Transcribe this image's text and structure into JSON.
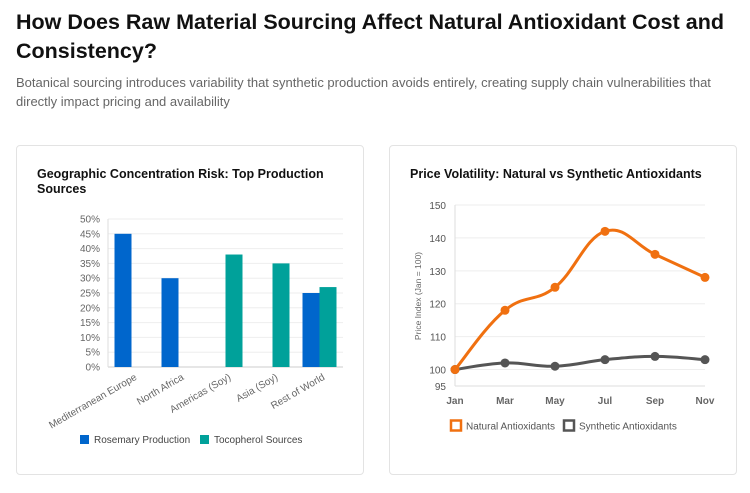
{
  "header": {
    "title": "How Does Raw Material Sourcing Affect Natural Antioxidant Cost and Consistency?",
    "subtitle": "Botanical sourcing introduces variability that synthetic production avoids entirely, creating supply chain vulnerabilities that directly impact pricing and availability"
  },
  "chart_data": [
    {
      "type": "bar",
      "title": "Geographic Concentration Risk: Top Production Sources",
      "categories": [
        "Mediterranean Europe",
        "North Africa",
        "Americas (Soy)",
        "Asia (Soy)",
        "Rest of World"
      ],
      "series": [
        {
          "name": "Rosemary Production",
          "values": [
            45,
            30,
            null,
            null,
            25
          ],
          "color": "#0066cc"
        },
        {
          "name": "Tocopherol Sources",
          "values": [
            null,
            null,
            38,
            35,
            27
          ],
          "color": "#00a19a"
        }
      ],
      "ylim": [
        0,
        50
      ],
      "yticks": [
        "0%",
        "5%",
        "10%",
        "15%",
        "20%",
        "25%",
        "30%",
        "35%",
        "40%",
        "45%",
        "50%"
      ],
      "grid": true,
      "legend": "bottom"
    },
    {
      "type": "line",
      "title": "Price Volatility: Natural vs Synthetic Antioxidants",
      "categories": [
        "Jan",
        "Mar",
        "May",
        "Jul",
        "Sep",
        "Nov"
      ],
      "series": [
        {
          "name": "Natural Antioxidants",
          "values": [
            100,
            118,
            125,
            142,
            135,
            128
          ],
          "color": "#f07010"
        },
        {
          "name": "Synthetic Antioxidants",
          "values": [
            100,
            102,
            101,
            103,
            104,
            103
          ],
          "color": "#555555"
        }
      ],
      "ylabel": "Price Index (Jan = 100)",
      "ylim": [
        95,
        150
      ],
      "yticks": [
        "95",
        "100",
        "110",
        "120",
        "130",
        "140",
        "150"
      ],
      "grid": true,
      "legend": "bottom"
    }
  ]
}
